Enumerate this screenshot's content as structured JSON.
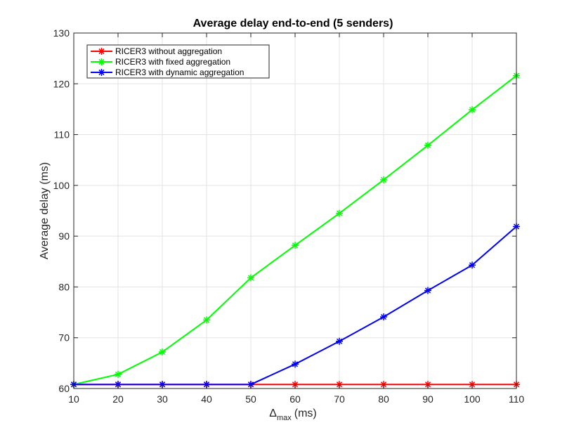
{
  "chart_data": {
    "type": "line",
    "title": "Average delay end-to-end (5 senders)",
    "xlabel": {
      "symbol": "Δ",
      "subscript": "max",
      "unit": "(ms)"
    },
    "ylabel": "Average delay (ms)",
    "xlim": [
      10,
      110
    ],
    "ylim": [
      60,
      130
    ],
    "xticks": [
      10,
      20,
      30,
      40,
      50,
      60,
      70,
      80,
      90,
      100,
      110
    ],
    "yticks": [
      60,
      70,
      80,
      90,
      100,
      110,
      120,
      130
    ],
    "grid": true,
    "legend_position": "top-left",
    "x": [
      10,
      20,
      30,
      40,
      50,
      60,
      70,
      80,
      90,
      100,
      110
    ],
    "series": [
      {
        "name": "RICER3 without aggregation",
        "color": "#ff0000",
        "marker": "asterisk",
        "values": [
          60.8,
          60.8,
          60.8,
          60.8,
          60.8,
          60.8,
          60.8,
          60.8,
          60.8,
          60.8,
          60.8
        ]
      },
      {
        "name": "RICER3 with fixed aggregation",
        "color": "#00ff00",
        "marker": "asterisk",
        "values": [
          60.8,
          62.8,
          67.2,
          73.5,
          81.8,
          88.2,
          94.5,
          101.1,
          107.9,
          114.9,
          121.6
        ]
      },
      {
        "name": "RICER3 with dynamic aggregation",
        "color": "#0000ff",
        "marker": "asterisk",
        "values": [
          60.8,
          60.8,
          60.8,
          60.8,
          60.8,
          64.8,
          69.3,
          74.1,
          79.3,
          84.3,
          91.9
        ]
      }
    ]
  }
}
